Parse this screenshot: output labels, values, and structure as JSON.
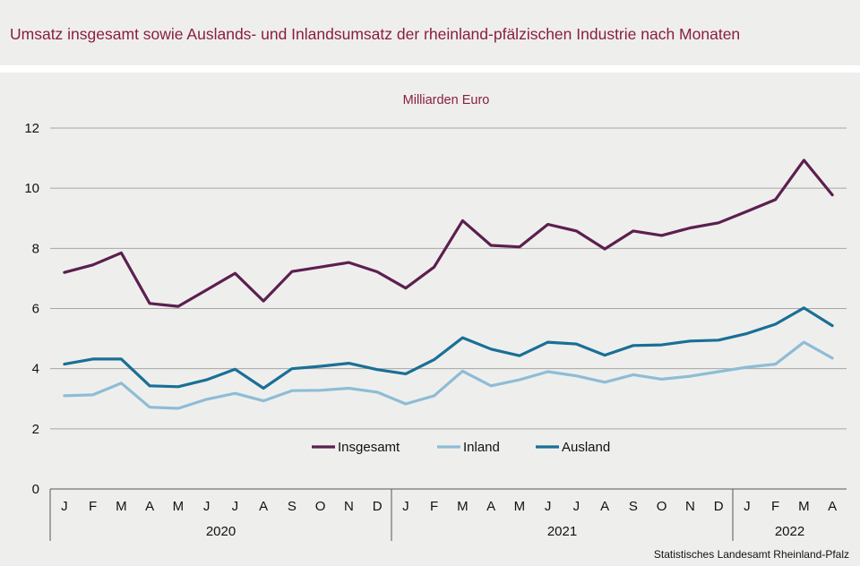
{
  "chart_data": {
    "type": "line",
    "title": "Umsatz insgesamt sowie Auslands- und Inlandsumsatz der rheinland-pfälzischen Industrie nach Monaten",
    "ylabel": "Milliarden Euro",
    "ylim": [
      0,
      12
    ],
    "yticks": [
      "0",
      "2",
      "4",
      "6",
      "8",
      "10",
      "12"
    ],
    "categories": [
      "J",
      "F",
      "M",
      "A",
      "M",
      "J",
      "J",
      "A",
      "S",
      "O",
      "N",
      "D",
      "J",
      "F",
      "M",
      "A",
      "M",
      "J",
      "J",
      "A",
      "S",
      "O",
      "N",
      "D",
      "J",
      "F",
      "M",
      "A"
    ],
    "years": [
      {
        "label": "2020",
        "months": 12
      },
      {
        "label": "2021",
        "months": 12
      },
      {
        "label": "2022",
        "months": 4
      }
    ],
    "series": [
      {
        "name": "Insgesamt",
        "color": "#5c1f4f",
        "values": [
          7.2,
          7.45,
          7.85,
          6.17,
          6.07,
          6.62,
          7.17,
          6.25,
          7.23,
          7.38,
          7.53,
          7.22,
          6.68,
          7.38,
          8.92,
          8.1,
          8.05,
          8.8,
          8.58,
          7.98,
          8.58,
          8.43,
          8.68,
          8.85,
          9.23,
          9.62,
          10.93,
          9.78
        ]
      },
      {
        "name": "Inland",
        "color": "#8fbcd6",
        "values": [
          3.1,
          3.13,
          3.52,
          2.72,
          2.68,
          2.98,
          3.18,
          2.93,
          3.27,
          3.28,
          3.35,
          3.22,
          2.83,
          3.1,
          3.92,
          3.43,
          3.63,
          3.9,
          3.76,
          3.55,
          3.8,
          3.65,
          3.75,
          3.9,
          4.05,
          4.15,
          4.88,
          4.35
        ]
      },
      {
        "name": "Ausland",
        "color": "#1a6f96",
        "values": [
          4.15,
          4.32,
          4.32,
          3.43,
          3.4,
          3.63,
          3.98,
          3.35,
          4.0,
          4.08,
          4.18,
          3.97,
          3.83,
          4.3,
          5.03,
          4.65,
          4.43,
          4.88,
          4.82,
          4.45,
          4.77,
          4.79,
          4.92,
          4.95,
          5.17,
          5.48,
          6.02,
          5.43
        ]
      }
    ]
  },
  "source": "Statistisches Landesamt  Rheinland-Pfalz"
}
